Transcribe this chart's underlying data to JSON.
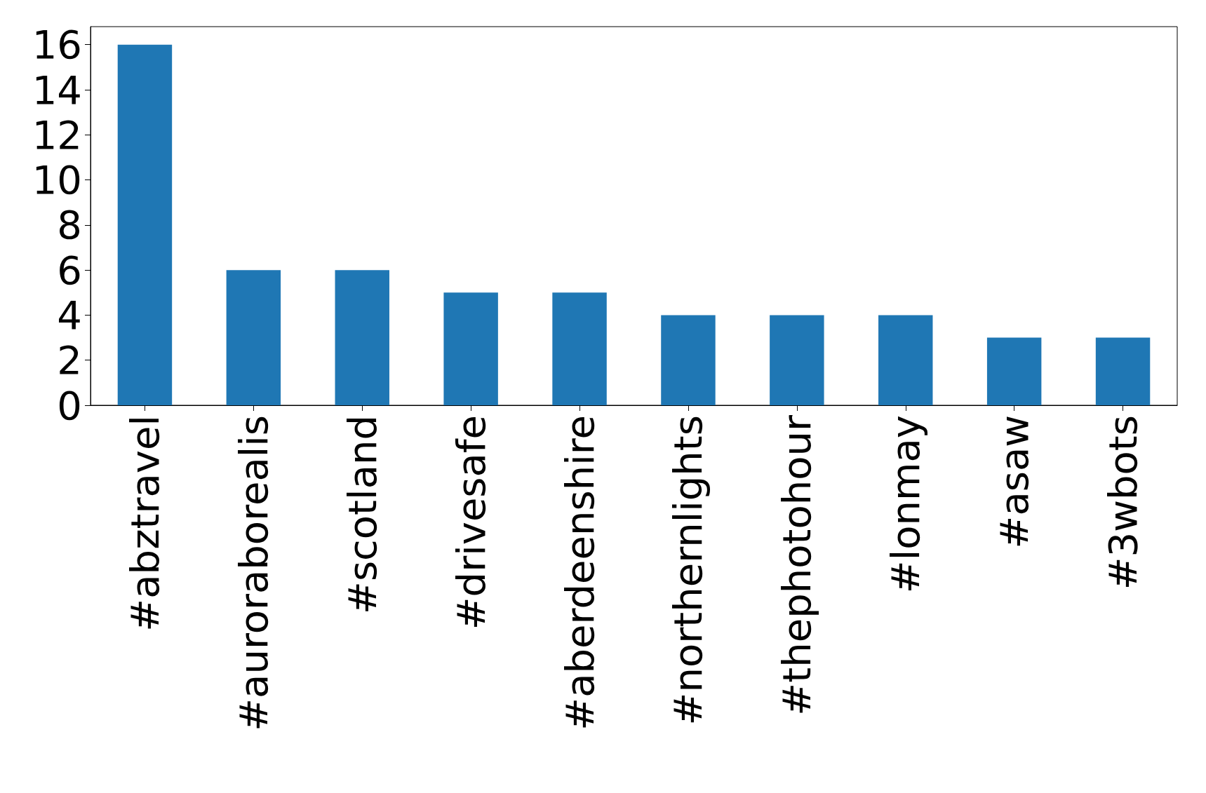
{
  "chart_data": {
    "type": "bar",
    "categories": [
      "#abztravel",
      "#auroraborealis",
      "#scotland",
      "#drivesafe",
      "#aberdeenshire",
      "#northernlights",
      "#thephotohour",
      "#lonmay",
      "#asaw",
      "#3wbots"
    ],
    "values": [
      16,
      6,
      6,
      5,
      5,
      4,
      4,
      4,
      3,
      3
    ],
    "color": "#1f77b4",
    "ylim": [
      0,
      16.8
    ],
    "yticks": [
      0,
      2,
      4,
      6,
      8,
      10,
      12,
      14,
      16
    ],
    "grid": false
  }
}
